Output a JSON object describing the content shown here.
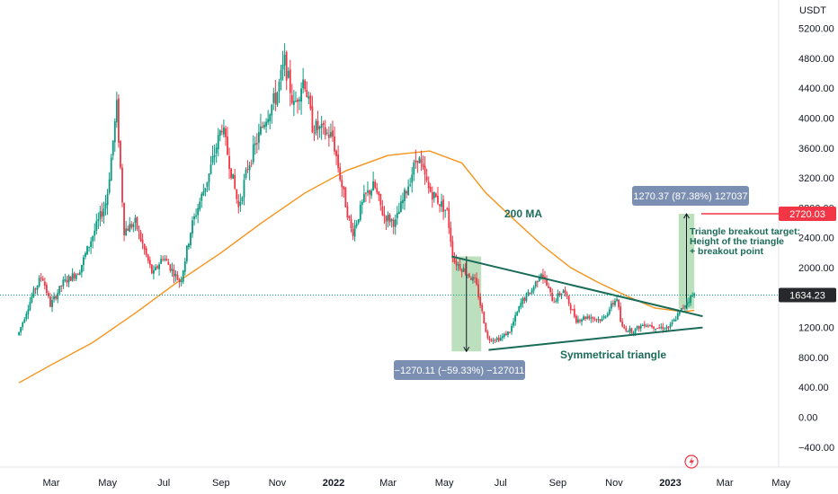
{
  "chart_data": {
    "type": "candlestick",
    "title": "",
    "currency": "USDT",
    "y_ticks": [
      5200,
      4800,
      4400,
      4000,
      3600,
      3200,
      2800,
      2400,
      2000,
      1600,
      1200,
      800,
      400,
      0,
      -400
    ],
    "y_tick_labels": [
      "5200.00",
      "4800.00",
      "4400.00",
      "4000.00",
      "3600.00",
      "3200.00",
      "2800.00",
      "2400.00",
      "2000.00",
      "1600.00",
      "1200.00",
      "800.00",
      "400.00",
      "0.00",
      "−400.00"
    ],
    "x_ticks": [
      {
        "label": "Mar",
        "date": "2021-03-01"
      },
      {
        "label": "May",
        "date": "2021-05-01"
      },
      {
        "label": "Jul",
        "date": "2021-07-01"
      },
      {
        "label": "Sep",
        "date": "2021-09-01"
      },
      {
        "label": "Nov",
        "date": "2021-11-01"
      },
      {
        "label": "2022",
        "date": "2022-01-01",
        "bold": true
      },
      {
        "label": "Mar",
        "date": "2022-03-01"
      },
      {
        "label": "May",
        "date": "2022-05-01"
      },
      {
        "label": "Jul",
        "date": "2022-07-01"
      },
      {
        "label": "Sep",
        "date": "2022-09-01"
      },
      {
        "label": "Nov",
        "date": "2022-11-01"
      },
      {
        "label": "2023",
        "date": "2023-01-01",
        "bold": true
      },
      {
        "label": "Mar",
        "date": "2023-03-01"
      },
      {
        "label": "May",
        "date": "2023-05-01"
      }
    ],
    "price_path": [
      [
        "2021-01-25",
        1100
      ],
      [
        "2021-02-10",
        1650
      ],
      [
        "2021-02-20",
        1900
      ],
      [
        "2021-03-01",
        1500
      ],
      [
        "2021-03-15",
        1800
      ],
      [
        "2021-04-01",
        1950
      ],
      [
        "2021-04-15",
        2400
      ],
      [
        "2021-05-01",
        2900
      ],
      [
        "2021-05-12",
        4150
      ],
      [
        "2021-05-20",
        2500
      ],
      [
        "2021-06-01",
        2600
      ],
      [
        "2021-06-20",
        1900
      ],
      [
        "2021-07-01",
        2150
      ],
      [
        "2021-07-20",
        1800
      ],
      [
        "2021-08-01",
        2550
      ],
      [
        "2021-08-20",
        3250
      ],
      [
        "2021-09-03",
        3900
      ],
      [
        "2021-09-21",
        2800
      ],
      [
        "2021-10-01",
        3350
      ],
      [
        "2021-10-20",
        4000
      ],
      [
        "2021-11-01",
        4300
      ],
      [
        "2021-11-10",
        4750
      ],
      [
        "2021-11-20",
        4150
      ],
      [
        "2021-12-01",
        4550
      ],
      [
        "2021-12-10",
        3900
      ],
      [
        "2022-01-01",
        3750
      ],
      [
        "2022-01-10",
        3150
      ],
      [
        "2022-01-22",
        2450
      ],
      [
        "2022-02-05",
        2950
      ],
      [
        "2022-02-15",
        3100
      ],
      [
        "2022-02-25",
        2700
      ],
      [
        "2022-03-10",
        2600
      ],
      [
        "2022-03-25",
        3150
      ],
      [
        "2022-04-03",
        3500
      ],
      [
        "2022-04-15",
        3050
      ],
      [
        "2022-04-25",
        2900
      ],
      [
        "2022-05-05",
        2750
      ],
      [
        "2022-05-12",
        2100
      ],
      [
        "2022-05-25",
        1950
      ],
      [
        "2022-06-05",
        1800
      ],
      [
        "2022-06-18",
        1050
      ],
      [
        "2022-07-01",
        1050
      ],
      [
        "2022-07-12",
        1150
      ],
      [
        "2022-07-25",
        1550
      ],
      [
        "2022-08-05",
        1700
      ],
      [
        "2022-08-15",
        1950
      ],
      [
        "2022-08-28",
        1550
      ],
      [
        "2022-09-08",
        1700
      ],
      [
        "2022-09-22",
        1300
      ],
      [
        "2022-10-05",
        1350
      ],
      [
        "2022-10-20",
        1300
      ],
      [
        "2022-11-05",
        1600
      ],
      [
        "2022-11-10",
        1200
      ],
      [
        "2022-11-22",
        1150
      ],
      [
        "2022-12-05",
        1250
      ],
      [
        "2022-12-20",
        1200
      ],
      [
        "2023-01-01",
        1200
      ],
      [
        "2023-01-12",
        1400
      ],
      [
        "2023-01-20",
        1550
      ],
      [
        "2023-01-27",
        1634
      ]
    ],
    "ma200_path": [
      [
        "2021-01-25",
        460
      ],
      [
        "2021-03-01",
        700
      ],
      [
        "2021-04-15",
        1000
      ],
      [
        "2021-06-01",
        1400
      ],
      [
        "2021-07-15",
        1800
      ],
      [
        "2021-09-01",
        2200
      ],
      [
        "2021-10-15",
        2600
      ],
      [
        "2021-12-01",
        3000
      ],
      [
        "2022-01-15",
        3300
      ],
      [
        "2022-03-01",
        3500
      ],
      [
        "2022-04-15",
        3560
      ],
      [
        "2022-05-20",
        3400
      ],
      [
        "2022-06-15",
        3000
      ],
      [
        "2022-07-15",
        2650
      ],
      [
        "2022-08-15",
        2300
      ],
      [
        "2022-09-15",
        2000
      ],
      [
        "2022-10-15",
        1800
      ],
      [
        "2022-11-15",
        1620
      ],
      [
        "2022-12-15",
        1460
      ],
      [
        "2023-01-15",
        1410
      ],
      [
        "2023-01-27",
        1430
      ]
    ],
    "ma_label": "200 MA",
    "triangle_label": "Symmetrical triangle",
    "triangle_upper": [
      [
        "2022-05-09",
        2150
      ],
      [
        "2023-02-05",
        1350
      ]
    ],
    "triangle_lower": [
      [
        "2022-06-18",
        900
      ],
      [
        "2023-02-05",
        1200
      ]
    ],
    "drop_measure": {
      "from_date": "2022-05-09",
      "to_date": "2022-06-10",
      "top": 2150,
      "bottom": 880,
      "label": "−1270.11 (−59.33%) −127011"
    },
    "rise_measure": {
      "from_date": "2023-01-10",
      "to_date": "2023-01-27",
      "bottom": 1450,
      "top": 2720,
      "label": "1270.37 (87.38%) 127037"
    },
    "breakout_note": [
      "Triangle breakout target:",
      "Height of the triangle",
      "+ breakout point"
    ],
    "target_price": {
      "value": 2720,
      "label": "2720.03",
      "color": "#f23645"
    },
    "current_price": {
      "value": 1634.23,
      "label": "1634.23",
      "color": "#089981"
    },
    "colors": {
      "up": "#089981",
      "down": "#f23645",
      "ma": "#f7931a",
      "triangle": "#1b6b59",
      "measure_down": "#a5d6a7",
      "measure_up": "#a5d6a7",
      "label_bg": "#7b8fb3"
    }
  }
}
